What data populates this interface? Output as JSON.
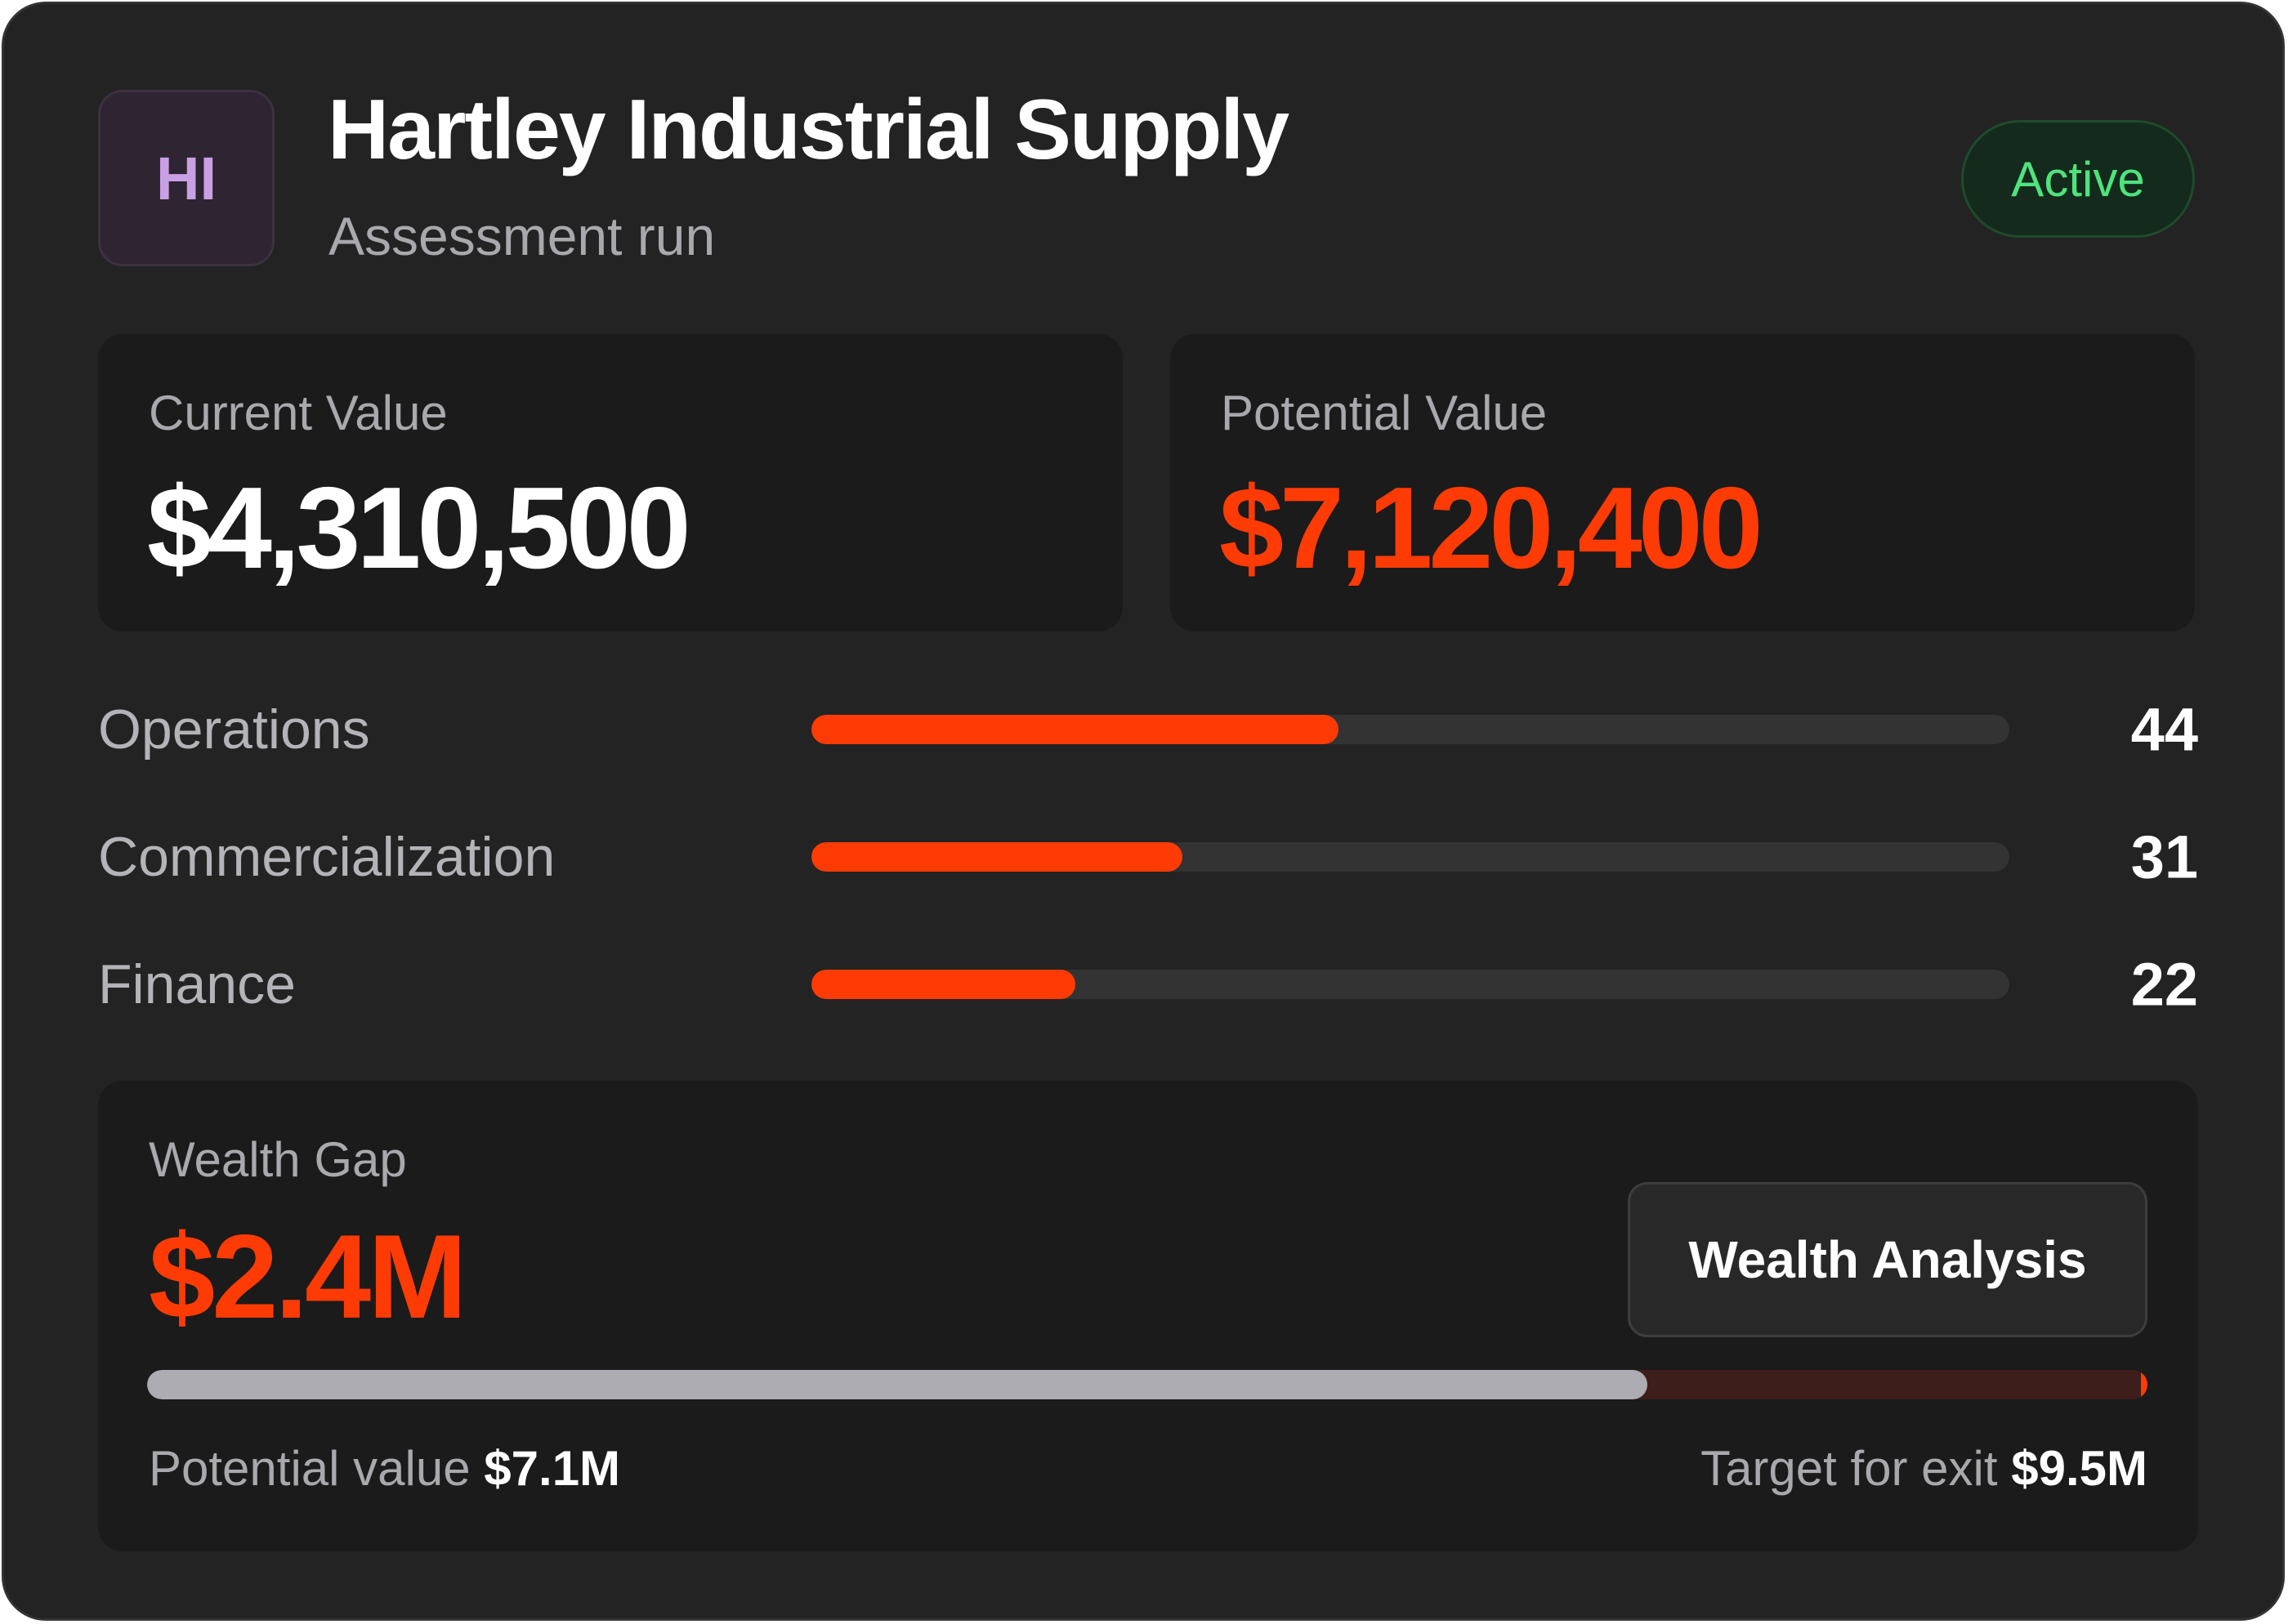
{
  "header": {
    "avatar_initials": "HI",
    "company_name": "Hartley Industrial Supply",
    "subtitle": "Assessment run",
    "status_badge": "Active"
  },
  "values": {
    "current": {
      "label": "Current Value",
      "amount": "$4,310,500"
    },
    "potential": {
      "label": "Potential Value",
      "amount": "$7,120,400"
    }
  },
  "metrics": [
    {
      "label": "Operations",
      "value": "44",
      "progress_percent": 44
    },
    {
      "label": "Commercialization",
      "value": "31",
      "progress_percent": 31
    },
    {
      "label": "Finance",
      "value": "22",
      "progress_percent": 22
    }
  ],
  "wealth_gap": {
    "label": "Wealth Gap",
    "amount": "$2.4M",
    "button_label": "Wealth Analysis",
    "progress_fraction": 0.75,
    "potential_label": "Potential value",
    "potential_value": "$7.1M",
    "target_label": "Target for exit",
    "target_value": "$9.5M"
  },
  "colors": {
    "accent": "#ff3b05",
    "active_green": "#4ee37e",
    "card_background": "#232323",
    "panel_background": "#1b1b1b"
  }
}
